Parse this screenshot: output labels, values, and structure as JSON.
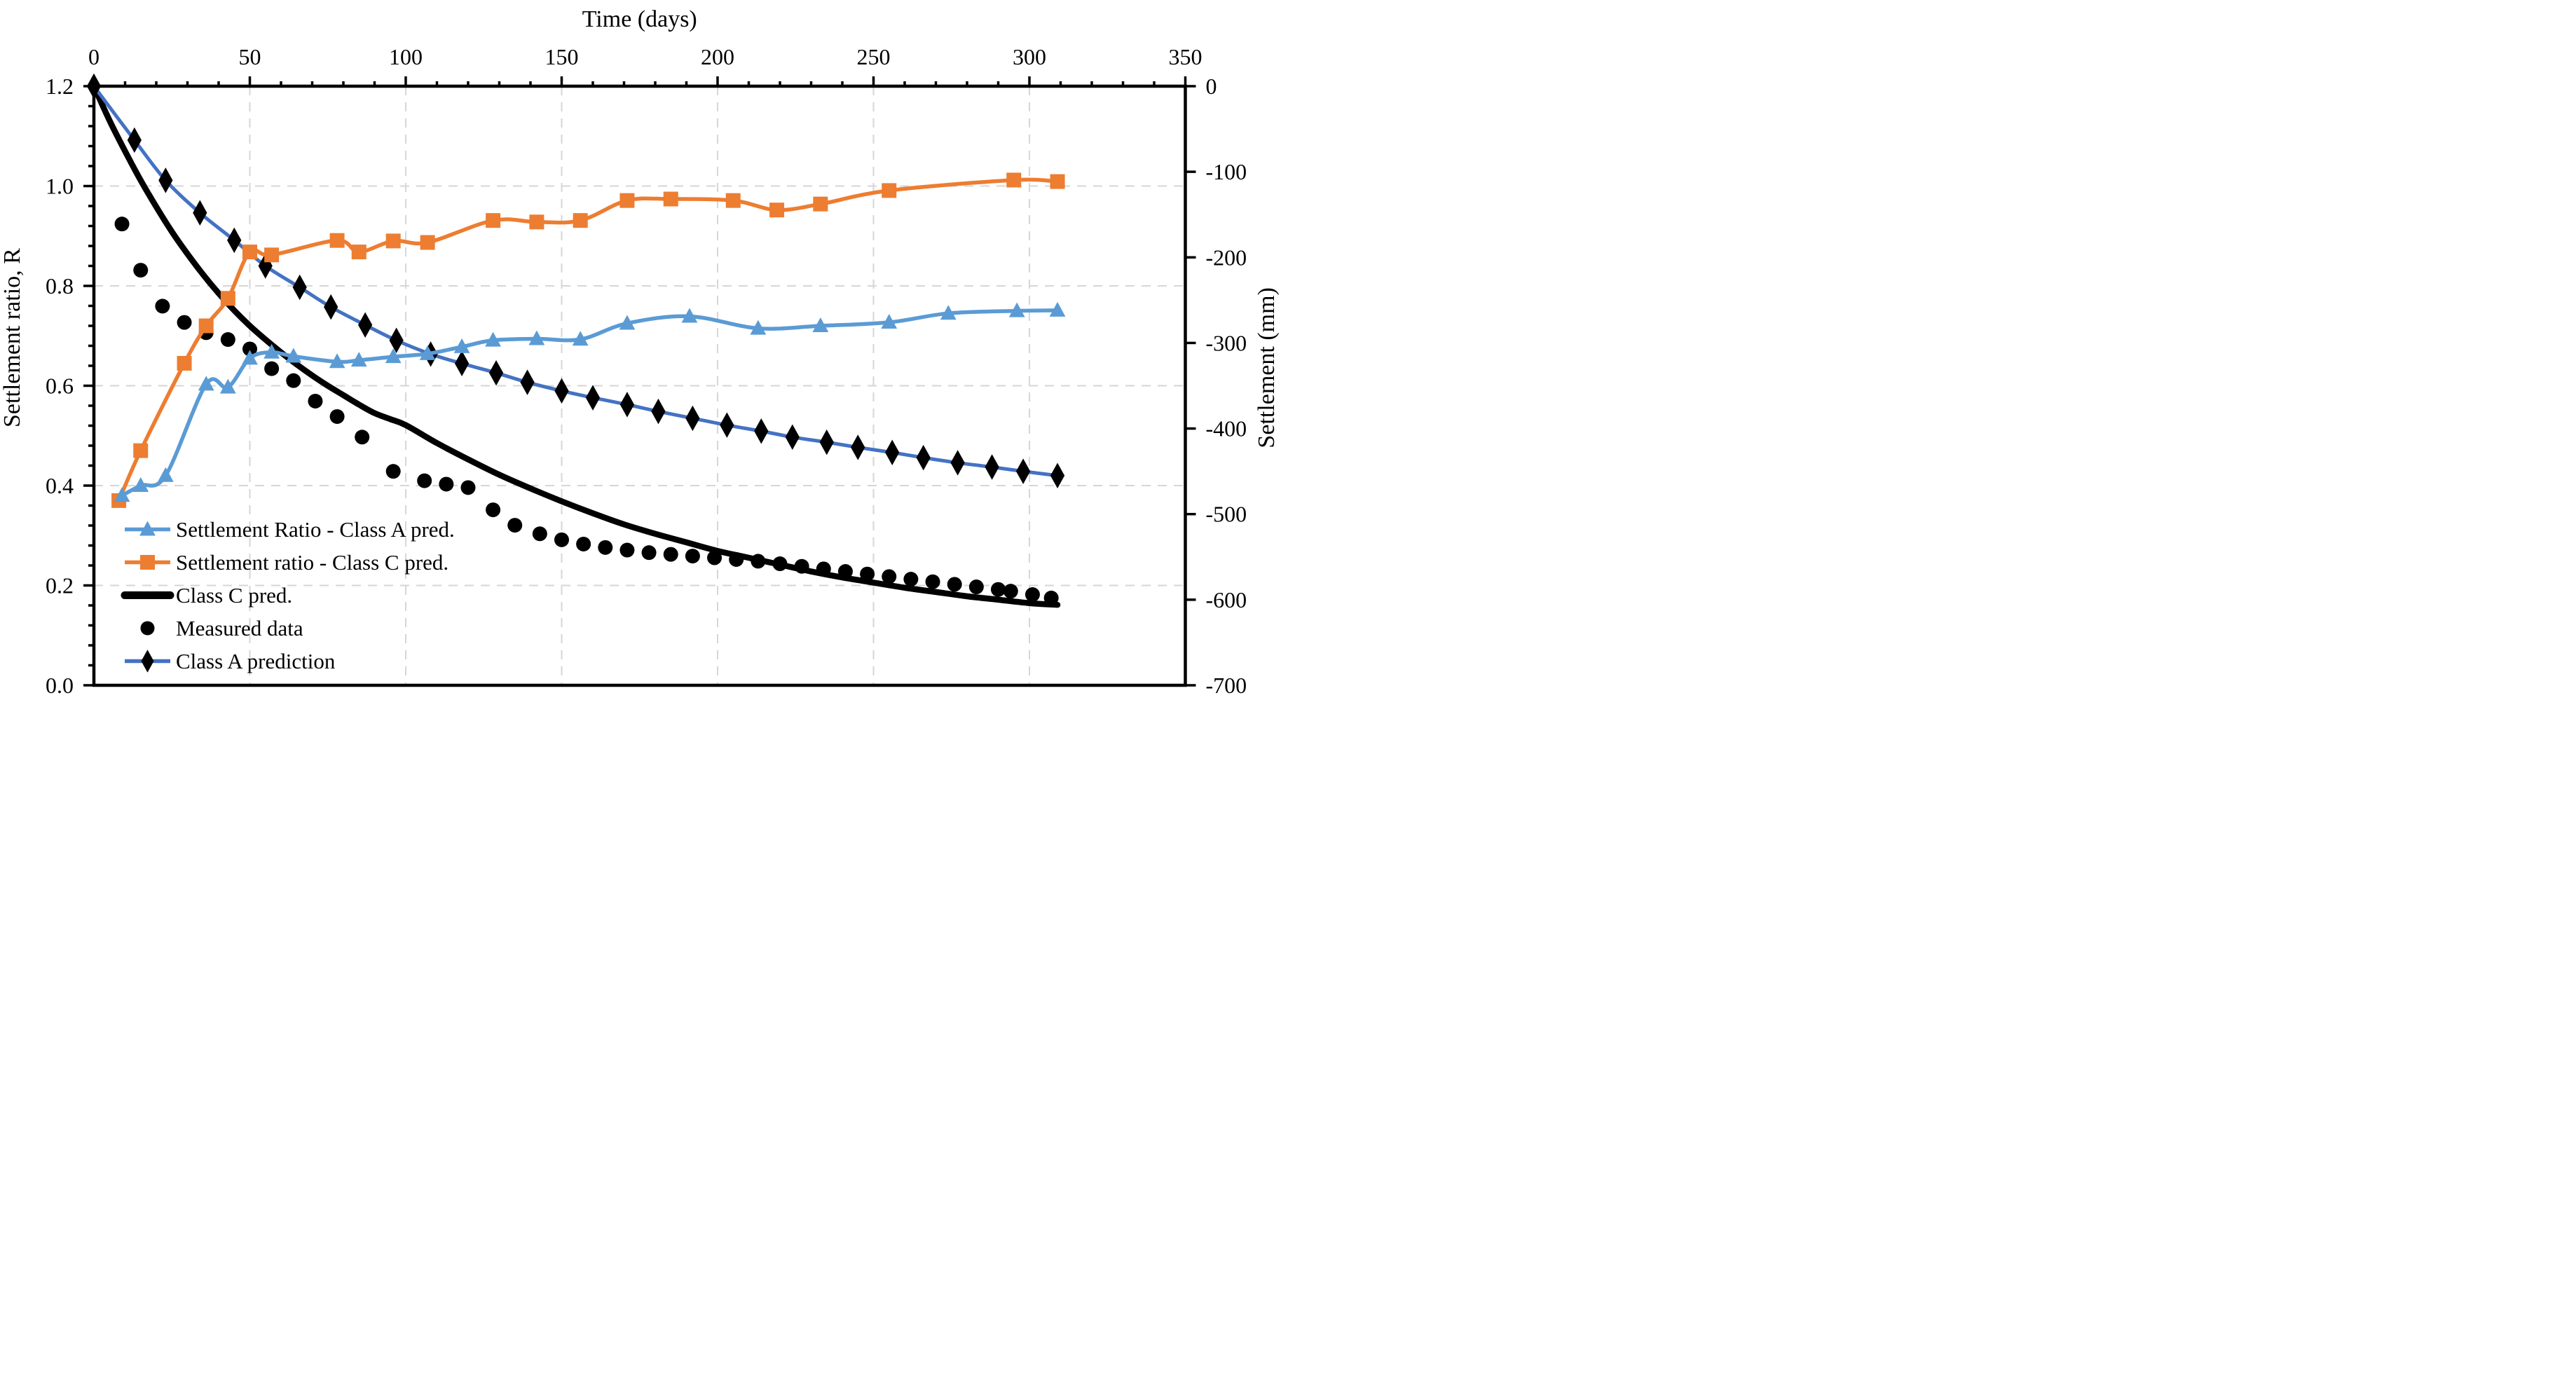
{
  "chart_data": {
    "type": "line",
    "title": "",
    "x_axis": {
      "title": "Time (days)",
      "position": "top",
      "min": 0,
      "max": 350,
      "major_ticks": [
        0,
        50,
        100,
        150,
        200,
        250,
        300,
        350
      ],
      "minor_tick_step": 10,
      "gridlines": [
        50,
        100,
        150,
        200,
        250,
        300
      ]
    },
    "y_axis_left": {
      "title": "Settlement ratio, R",
      "min": 0.0,
      "max": 1.2,
      "major_ticks": [
        "1.2",
        "1.0",
        "0.8",
        "0.6",
        "0.4",
        "0.2",
        "0.0"
      ],
      "major_tick_values": [
        1.2,
        1.0,
        0.8,
        0.6,
        0.4,
        0.2,
        0.0
      ],
      "minor_tick_step": 0.04,
      "gridlines": [
        1.0,
        0.8,
        0.6,
        0.4,
        0.2
      ]
    },
    "y_axis_right": {
      "title": "Settlement (mm)",
      "min": -700,
      "max": 0,
      "major_ticks": [
        "0",
        "-100",
        "-200",
        "-300",
        "-400",
        "-500",
        "-600",
        "-700"
      ],
      "major_tick_values": [
        0,
        -100,
        -200,
        -300,
        -400,
        -500,
        -600,
        -700
      ]
    },
    "grid_color": "#d6d6d6",
    "series": [
      {
        "name": "Class C pred.",
        "axis": "right",
        "color": "#000000",
        "line_width": 17,
        "marker": "none",
        "smooth": true,
        "data": [
          [
            0,
            0
          ],
          [
            5,
            -40
          ],
          [
            10,
            -76
          ],
          [
            15,
            -110
          ],
          [
            20,
            -141
          ],
          [
            25,
            -170
          ],
          [
            30,
            -196
          ],
          [
            35,
            -220
          ],
          [
            40,
            -242
          ],
          [
            45,
            -262
          ],
          [
            50,
            -280
          ],
          [
            55,
            -296
          ],
          [
            60,
            -311
          ],
          [
            65,
            -325
          ],
          [
            70,
            -338
          ],
          [
            75,
            -350
          ],
          [
            80,
            -361
          ],
          [
            85,
            -372
          ],
          [
            90,
            -382
          ],
          [
            95,
            -389
          ],
          [
            100,
            -396
          ],
          [
            110,
            -417
          ],
          [
            120,
            -436
          ],
          [
            130,
            -454
          ],
          [
            140,
            -470
          ],
          [
            150,
            -485
          ],
          [
            160,
            -499
          ],
          [
            170,
            -512
          ],
          [
            180,
            -523
          ],
          [
            190,
            -533
          ],
          [
            200,
            -543
          ],
          [
            210,
            -551
          ],
          [
            220,
            -559
          ],
          [
            230,
            -567
          ],
          [
            240,
            -574
          ],
          [
            250,
            -580
          ],
          [
            260,
            -586
          ],
          [
            270,
            -591
          ],
          [
            280,
            -596
          ],
          [
            290,
            -600
          ],
          [
            300,
            -604
          ],
          [
            309,
            -606
          ]
        ]
      },
      {
        "name": "Measured data",
        "axis": "right",
        "color": "#000000",
        "line_width": 0,
        "marker": "circle",
        "marker_size": 21,
        "data": [
          [
            9,
            -161
          ],
          [
            15,
            -215
          ],
          [
            22,
            -257
          ],
          [
            29,
            -276
          ],
          [
            36,
            -288
          ],
          [
            43,
            -296
          ],
          [
            50,
            -307
          ],
          [
            57,
            -330
          ],
          [
            64,
            -344
          ],
          [
            71,
            -368
          ],
          [
            78,
            -386
          ],
          [
            86,
            -410
          ],
          [
            96,
            -450
          ],
          [
            106,
            -461
          ],
          [
            113,
            -465
          ],
          [
            120,
            -469
          ],
          [
            128,
            -495
          ],
          [
            135,
            -513
          ],
          [
            143,
            -523
          ],
          [
            150,
            -530
          ],
          [
            157,
            -535
          ],
          [
            164,
            -539
          ],
          [
            171,
            -542
          ],
          [
            178,
            -545
          ],
          [
            185,
            -547
          ],
          [
            192,
            -549
          ],
          [
            199,
            -551
          ],
          [
            206,
            -553
          ],
          [
            213,
            -555
          ],
          [
            220,
            -558
          ],
          [
            227,
            -561
          ],
          [
            234,
            -564
          ],
          [
            241,
            -567
          ],
          [
            248,
            -570
          ],
          [
            255,
            -573
          ],
          [
            262,
            -576
          ],
          [
            269,
            -579
          ],
          [
            276,
            -582
          ],
          [
            283,
            -585
          ],
          [
            290,
            -588
          ],
          [
            294,
            -590
          ],
          [
            301,
            -594
          ],
          [
            307,
            -598
          ]
        ]
      },
      {
        "name": "Class A prediction",
        "axis": "right",
        "color": "#4472c4",
        "line_width": 10,
        "marker": "diamond",
        "marker_color": "#000000",
        "marker_size": 27,
        "smooth": true,
        "data": [
          [
            0,
            0
          ],
          [
            13,
            -63
          ],
          [
            23,
            -110
          ],
          [
            34,
            -148
          ],
          [
            45,
            -180
          ],
          [
            55,
            -210
          ],
          [
            66,
            -235
          ],
          [
            76,
            -258
          ],
          [
            87,
            -279
          ],
          [
            97,
            -297
          ],
          [
            108,
            -313
          ],
          [
            118,
            -324
          ],
          [
            129,
            -335
          ],
          [
            139,
            -346
          ],
          [
            150,
            -356
          ],
          [
            160,
            -364
          ],
          [
            171,
            -372
          ],
          [
            181,
            -380
          ],
          [
            192,
            -388
          ],
          [
            203,
            -396
          ],
          [
            214,
            -403
          ],
          [
            224,
            -410
          ],
          [
            235,
            -416
          ],
          [
            245,
            -422
          ],
          [
            256,
            -428
          ],
          [
            266,
            -434
          ],
          [
            277,
            -440
          ],
          [
            288,
            -445
          ],
          [
            298,
            -450
          ],
          [
            309,
            -455
          ]
        ]
      },
      {
        "name": "Settlement ratio - Class C pred.",
        "axis": "left",
        "color": "#ed7d31",
        "line_width": 11,
        "marker": "square",
        "marker_size": 21,
        "smooth": true,
        "data": [
          [
            8,
            0.37
          ],
          [
            15,
            0.47
          ],
          [
            29,
            0.645
          ],
          [
            36,
            0.72
          ],
          [
            43,
            0.775
          ],
          [
            50,
            0.868
          ],
          [
            57,
            0.862
          ],
          [
            78,
            0.891
          ],
          [
            85,
            0.868
          ],
          [
            96,
            0.89
          ],
          [
            107,
            0.887
          ],
          [
            128,
            0.931
          ],
          [
            142,
            0.928
          ],
          [
            156,
            0.931
          ],
          [
            171,
            0.971
          ],
          [
            185,
            0.974
          ],
          [
            205,
            0.971
          ],
          [
            219,
            0.952
          ],
          [
            233,
            0.964
          ],
          [
            255,
            0.991
          ],
          [
            295,
            1.012
          ],
          [
            309,
            1.009
          ]
        ]
      },
      {
        "name": "Settlement Ratio - Class A pred.",
        "axis": "left",
        "color": "#5b9bd5",
        "line_width": 11,
        "marker": "triangle",
        "marker_size": 24,
        "smooth": true,
        "data": [
          [
            9,
            0.38
          ],
          [
            15,
            0.4
          ],
          [
            23,
            0.42
          ],
          [
            36,
            0.603
          ],
          [
            43,
            0.597
          ],
          [
            50,
            0.655
          ],
          [
            57,
            0.667
          ],
          [
            64,
            0.659
          ],
          [
            78,
            0.648
          ],
          [
            85,
            0.651
          ],
          [
            96,
            0.658
          ],
          [
            107,
            0.664
          ],
          [
            118,
            0.678
          ],
          [
            128,
            0.691
          ],
          [
            142,
            0.694
          ],
          [
            156,
            0.693
          ],
          [
            171,
            0.725
          ],
          [
            191,
            0.739
          ],
          [
            213,
            0.715
          ],
          [
            233,
            0.72
          ],
          [
            255,
            0.727
          ],
          [
            274,
            0.745
          ],
          [
            296,
            0.75
          ],
          [
            309,
            0.751
          ]
        ]
      }
    ],
    "legend": {
      "position": "inside-bottom-left",
      "items": [
        {
          "label": "Settlement Ratio - Class A pred.",
          "icon": "line-triangle",
          "line_color": "#5b9bd5",
          "marker_color": "#5b9bd5"
        },
        {
          "label": "Settlement ratio - Class C pred.",
          "icon": "line-square",
          "line_color": "#ed7d31",
          "marker_color": "#ed7d31"
        },
        {
          "label": "Class C pred.",
          "icon": "thick-line",
          "line_color": "#000000",
          "marker_color": "#000000"
        },
        {
          "label": "Measured data",
          "icon": "circle",
          "line_color": "#000000",
          "marker_color": "#000000"
        },
        {
          "label": "Class A prediction",
          "icon": "line-diamond",
          "line_color": "#4472c4",
          "marker_color": "#000000"
        }
      ]
    }
  }
}
